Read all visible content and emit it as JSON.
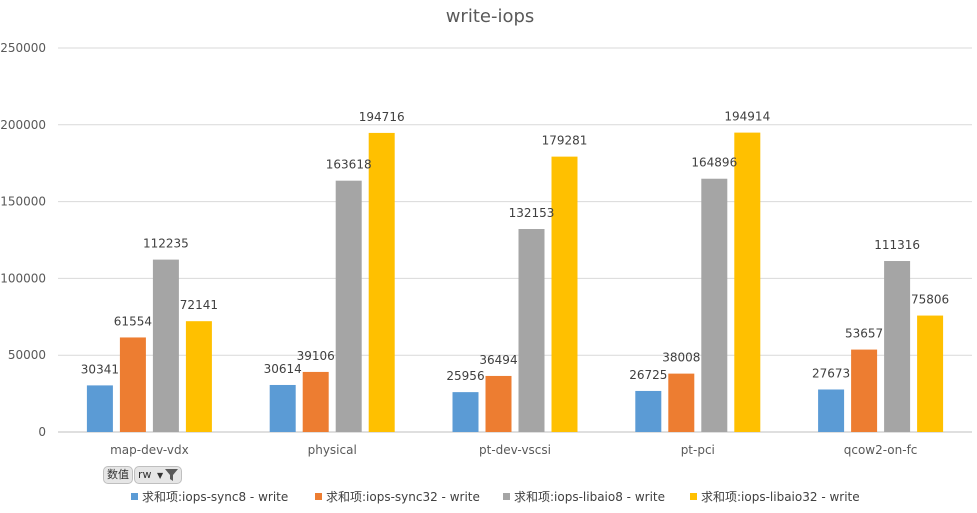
{
  "chart_data": {
    "type": "bar",
    "title": "write-iops",
    "categories": [
      "map-dev-vdx",
      "physical",
      "pt-dev-vscsi",
      "pt-pci",
      "qcow2-on-fc"
    ],
    "series": [
      {
        "name": "求和项:iops-sync8 - write",
        "color": "#5b9bd5",
        "values": [
          30341,
          30614,
          25956,
          26725,
          27673
        ]
      },
      {
        "name": "求和项:iops-sync32 - write",
        "color": "#ed7d31",
        "values": [
          61554,
          39106,
          36494,
          38008,
          53657
        ]
      },
      {
        "name": "求和项:iops-libaio8 - write",
        "color": "#a5a5a5",
        "values": [
          112235,
          163618,
          132153,
          164896,
          111316
        ]
      },
      {
        "name": "求和项:iops-libaio32 - write",
        "color": "#ffc000",
        "values": [
          72141,
          194716,
          179281,
          194914,
          75806
        ]
      }
    ],
    "ylim": [
      0,
      250000
    ],
    "yticks": [
      0,
      50000,
      100000,
      150000,
      200000,
      250000
    ],
    "grid": true,
    "legend_position": "bottom"
  },
  "controls": {
    "value_button": "数值",
    "filter_button": "rw"
  }
}
